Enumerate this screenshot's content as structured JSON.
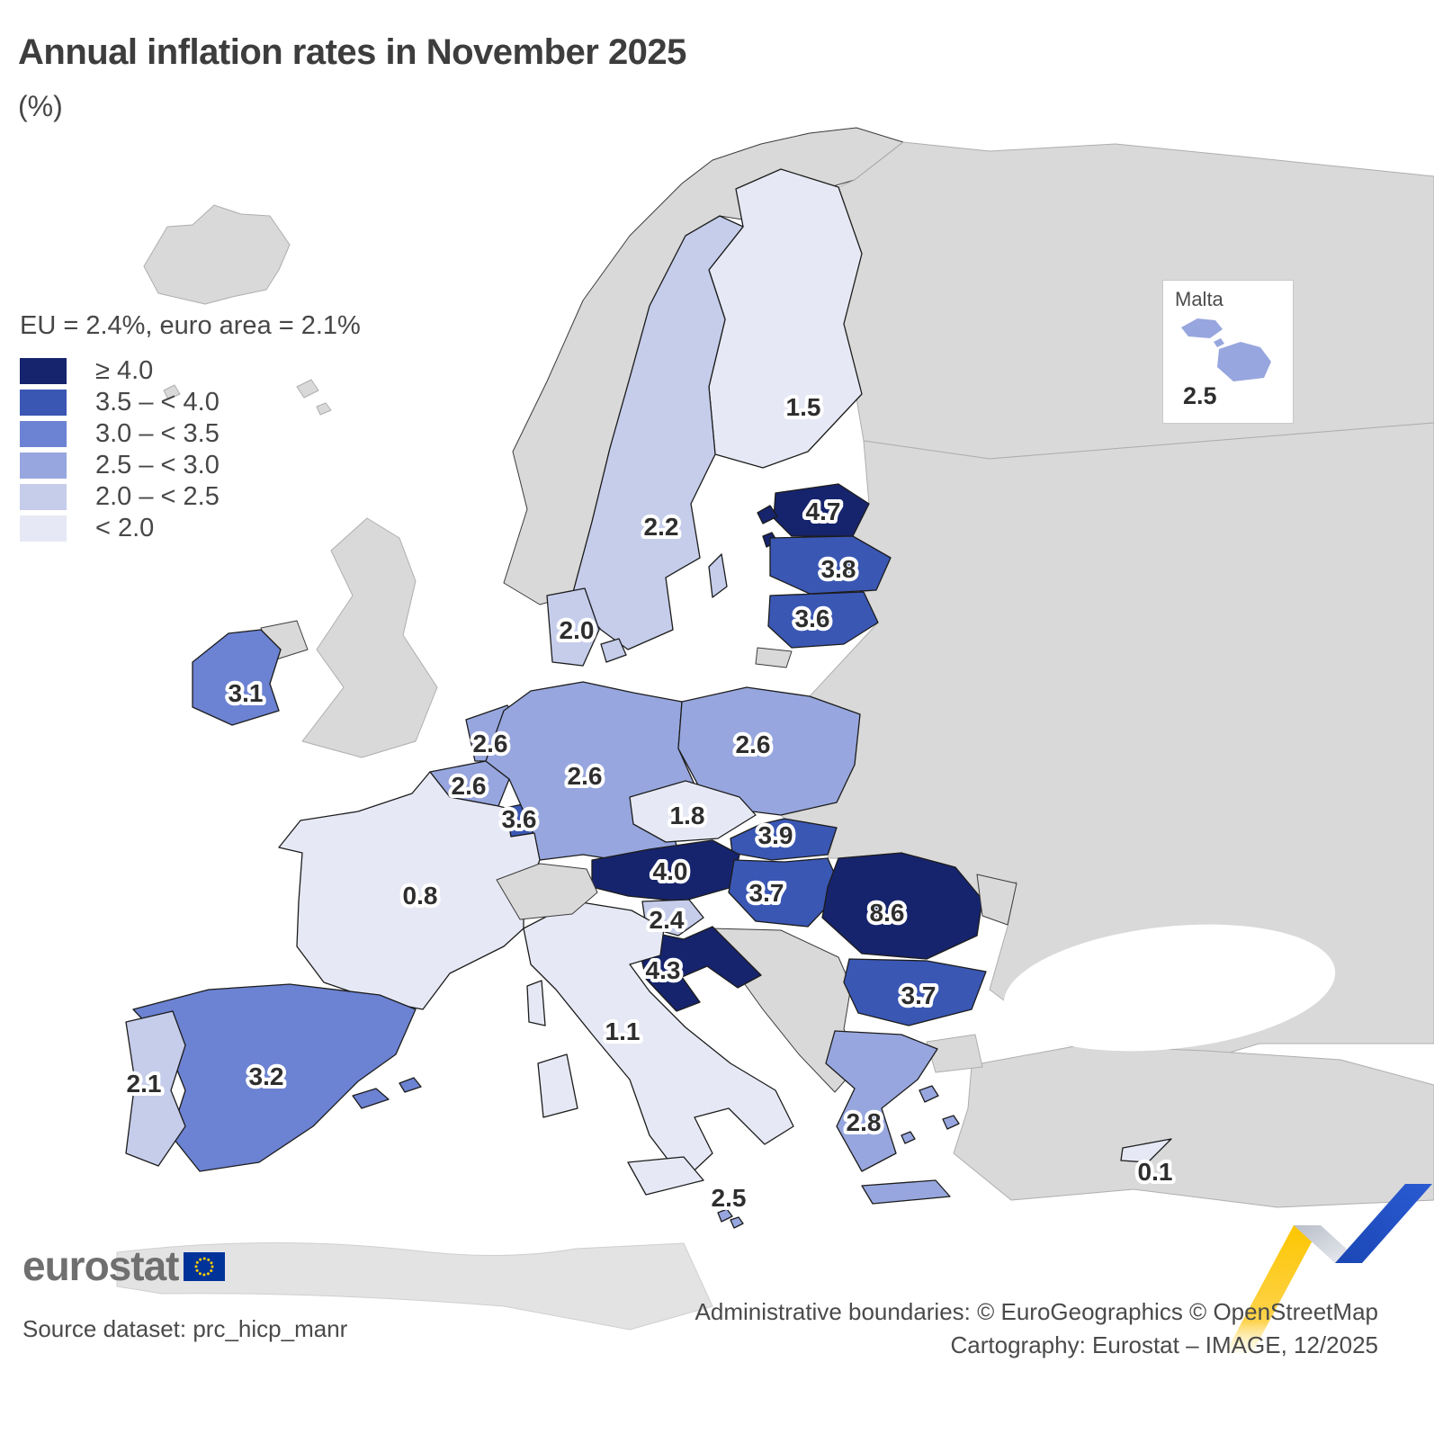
{
  "title": "Annual inflation rates in November 2025",
  "subtitle": "(%)",
  "legend": {
    "summary": "EU = 2.4%, euro area = 2.1%",
    "classes": [
      {
        "label": "≥ 4.0",
        "min": 4.0,
        "color": "#16246d"
      },
      {
        "label": "3.5 – < 4.0",
        "min": 3.5,
        "color": "#3a57b4"
      },
      {
        "label": "3.0 – < 3.5",
        "min": 3.0,
        "color": "#6c82d2"
      },
      {
        "label": "2.5 – < 3.0",
        "min": 2.5,
        "color": "#97a6de"
      },
      {
        "label": "2.0 – < 2.5",
        "min": 2.0,
        "color": "#c5cdeb"
      },
      {
        "label": "< 2.0",
        "min": null,
        "color": "#e6e9f5"
      }
    ]
  },
  "map": {
    "sea_color": "#ffffff",
    "noneu_color": "#d9d9d9",
    "countries": [
      {
        "name": "Finland",
        "value": "1.5"
      },
      {
        "name": "Sweden",
        "value": "2.2"
      },
      {
        "name": "Estonia",
        "value": "4.7"
      },
      {
        "name": "Latvia",
        "value": "3.8"
      },
      {
        "name": "Lithuania",
        "value": "3.6"
      },
      {
        "name": "Denmark",
        "value": "2.0"
      },
      {
        "name": "Ireland",
        "value": "3.1"
      },
      {
        "name": "Netherlands",
        "value": "2.6"
      },
      {
        "name": "Belgium",
        "value": "2.6"
      },
      {
        "name": "Luxembourg",
        "value": "3.6"
      },
      {
        "name": "Germany",
        "value": "2.6"
      },
      {
        "name": "Poland",
        "value": "2.6"
      },
      {
        "name": "Czechia",
        "value": "1.8"
      },
      {
        "name": "Slovakia",
        "value": "3.9"
      },
      {
        "name": "Austria",
        "value": "4.0"
      },
      {
        "name": "Hungary",
        "value": "3.7"
      },
      {
        "name": "Slovenia",
        "value": "2.4"
      },
      {
        "name": "Croatia",
        "value": "4.3"
      },
      {
        "name": "Romania",
        "value": "8.6"
      },
      {
        "name": "Bulgaria",
        "value": "3.7"
      },
      {
        "name": "Italy",
        "value": "1.1"
      },
      {
        "name": "France",
        "value": "0.8"
      },
      {
        "name": "Spain",
        "value": "3.2"
      },
      {
        "name": "Portugal",
        "value": "2.1"
      },
      {
        "name": "Greece",
        "value": "2.8"
      },
      {
        "name": "Cyprus",
        "value": "0.1"
      },
      {
        "name": "Malta",
        "value": "2.5"
      }
    ]
  },
  "inset": {
    "label": "Malta",
    "value": "2.5"
  },
  "logo": {
    "text": "eurostat"
  },
  "ribbon_colors": {
    "yellow": "#fdc600",
    "blue": "#2253c6",
    "fold": "#c9cdd6"
  },
  "footer": {
    "source": "Source dataset: prc_hicp_manr",
    "line1": "Administrative boundaries: © EuroGeographics © OpenStreetMap",
    "line2": "Cartography: Eurostat – IMAGE, 12/2025"
  }
}
